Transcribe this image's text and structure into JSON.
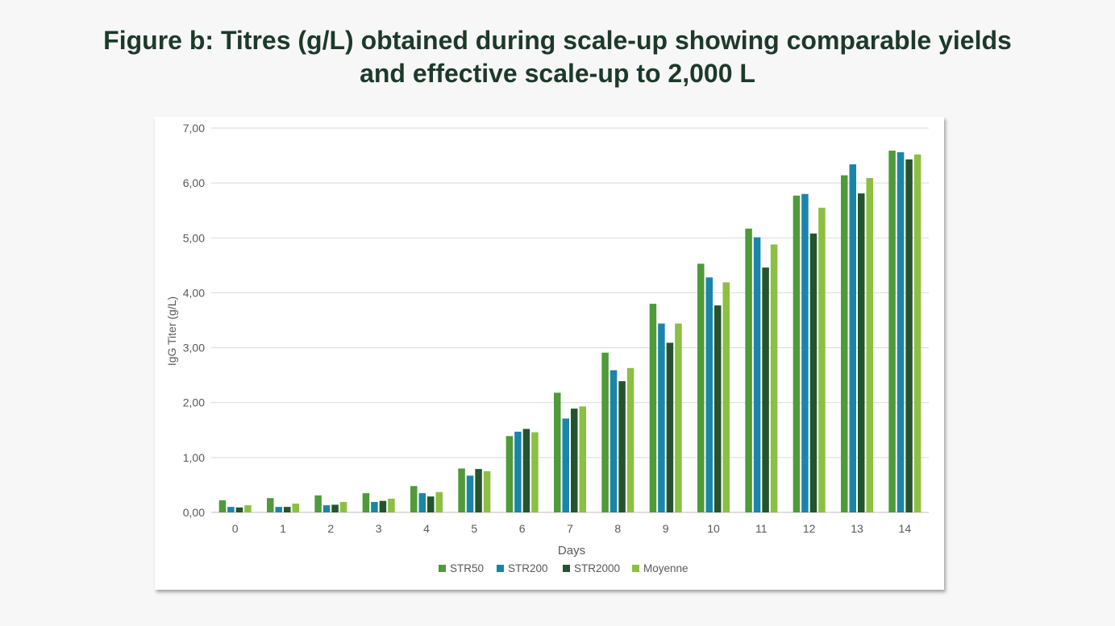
{
  "title_line1": "Figure b: Titres (g/L) obtained during scale-up showing comparable yields",
  "title_line2": "and effective scale-up to 2,000 L",
  "chart_data": {
    "type": "bar",
    "title": "Figure b: Titres (g/L) obtained during scale-up showing comparable yields and effective scale-up to 2,000 L",
    "xlabel": "Days",
    "ylabel": "IgG Titer (g/L)",
    "ylim": [
      0,
      7
    ],
    "yticks": [
      "0,00",
      "1,00",
      "2,00",
      "3,00",
      "4,00",
      "5,00",
      "6,00",
      "7,00"
    ],
    "grid": true,
    "legend_position": "bottom",
    "categories": [
      "0",
      "1",
      "2",
      "3",
      "4",
      "5",
      "6",
      "7",
      "8",
      "9",
      "10",
      "11",
      "12",
      "13",
      "14"
    ],
    "series": [
      {
        "name": "STR50",
        "color": "#4f9a3a",
        "values": [
          0.22,
          0.26,
          0.31,
          0.35,
          0.48,
          0.8,
          1.39,
          2.18,
          2.91,
          3.8,
          4.53,
          5.17,
          5.77,
          6.14,
          6.59
        ]
      },
      {
        "name": "STR200",
        "color": "#1a85a8",
        "values": [
          0.1,
          0.1,
          0.13,
          0.19,
          0.35,
          0.67,
          1.47,
          1.71,
          2.59,
          3.44,
          4.28,
          5.01,
          5.8,
          6.34,
          6.56
        ]
      },
      {
        "name": "STR2000",
        "color": "#24542e",
        "values": [
          0.09,
          0.1,
          0.14,
          0.21,
          0.29,
          0.79,
          1.52,
          1.89,
          2.39,
          3.09,
          3.77,
          4.46,
          5.08,
          5.81,
          6.43
        ]
      },
      {
        "name": "Moyenne",
        "color": "#8cbf42",
        "values": [
          0.13,
          0.16,
          0.19,
          0.25,
          0.37,
          0.75,
          1.46,
          1.93,
          2.63,
          3.44,
          4.19,
          4.88,
          5.55,
          6.09,
          6.52
        ]
      }
    ]
  }
}
